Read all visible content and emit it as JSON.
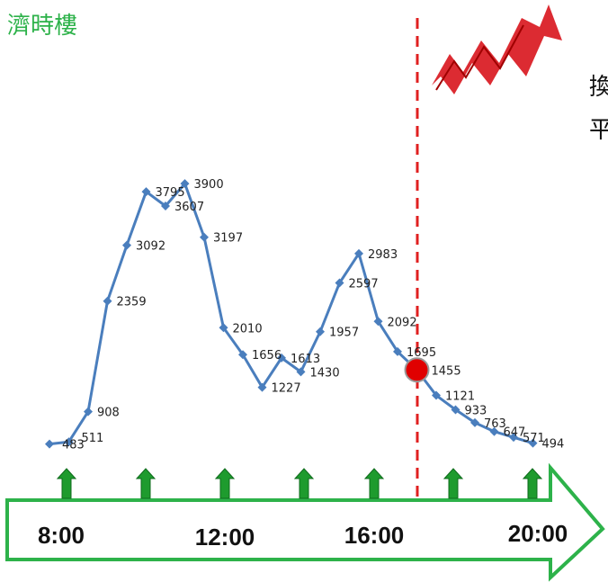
{
  "title": "濟時樓",
  "side_text": [
    "換",
    "平"
  ],
  "colors": {
    "line": "#4a7ebd",
    "title": "#2db24a",
    "divider": "#e02020",
    "marker": "#e00000",
    "arrow_border": "#2db24a",
    "tick_arrow": "#1e9b2e"
  },
  "chart_data": {
    "type": "line",
    "series": [
      {
        "values": [
          483,
          511,
          908,
          2359,
          3092,
          3795,
          3607,
          3900,
          3197,
          2010,
          1656,
          1227,
          1613,
          1430,
          1957,
          2597,
          2983,
          2092,
          1695,
          1455,
          1121,
          933,
          763,
          647,
          571,
          494
        ]
      }
    ],
    "highlight": {
      "index": 19,
      "value": 1455
    },
    "time_labels": [
      "8:00",
      "12:00",
      "16:00",
      "20:00"
    ],
    "tick_arrow_count": 7,
    "divider": "red-dashed-vertical",
    "ylim": [
      0,
      4000
    ]
  }
}
